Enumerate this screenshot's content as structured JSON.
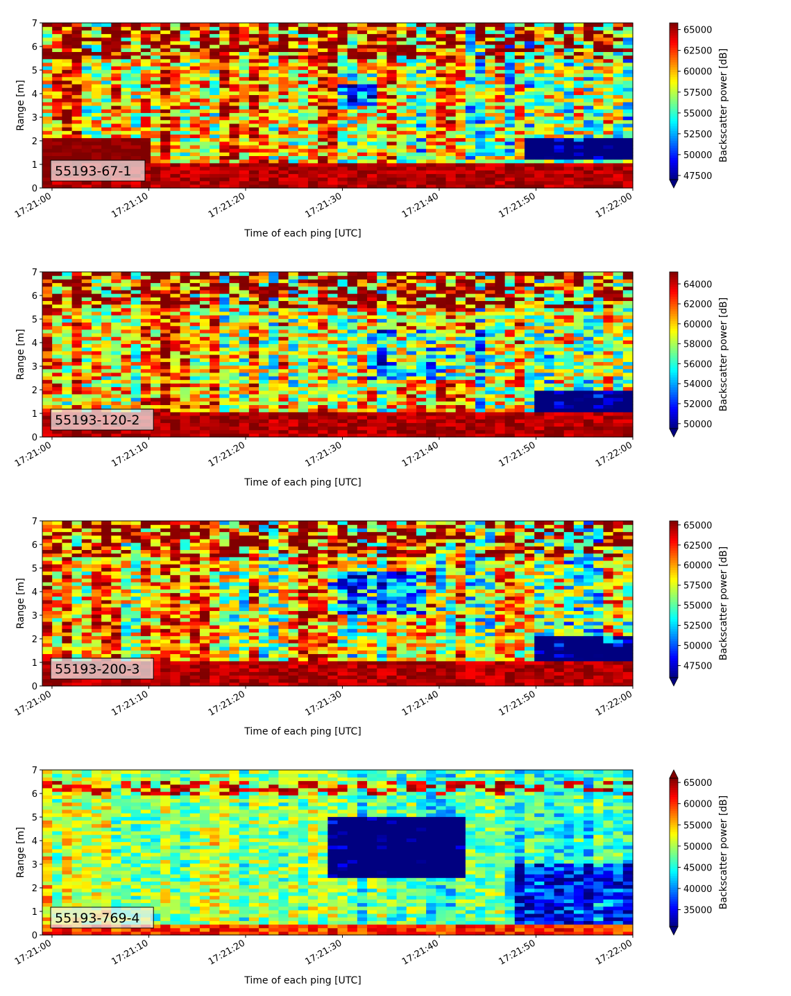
{
  "chart_data": [
    {
      "type": "heatmap",
      "label": "55193-67-1",
      "xlabel": "Time of each ping [UTC]",
      "ylabel": "Range [m]",
      "xticks": [
        "17:21:00",
        "17:21:10",
        "17:21:20",
        "17:21:30",
        "17:21:40",
        "17:21:50",
        "17:22:00"
      ],
      "yticks": [
        0,
        1,
        2,
        3,
        4,
        5,
        6,
        7
      ],
      "x_range": [
        "17:20:59",
        "17:22:00"
      ],
      "ylim": [
        0,
        7
      ],
      "colorbar": {
        "label": "Backscatter power [dB]",
        "range": [
          47000,
          65800
        ],
        "ticks": [
          47500,
          50000,
          52500,
          55000,
          57500,
          60000,
          62500,
          65000
        ],
        "extend": "min"
      },
      "features": {
        "lowband": "high",
        "blue_patch": {
          "x_start": 0.81,
          "x_end": 1.0,
          "y_lo": 1.2,
          "y_hi": 2.2,
          "strength": 0.9
        },
        "mid_blue": {
          "x_start": 0.5,
          "x_end": 0.56,
          "y_lo": 3.5,
          "y_hi": 4.4,
          "strength": 0.6
        }
      }
    },
    {
      "type": "heatmap",
      "label": "55193-120-2",
      "xlabel": "Time of each ping [UTC]",
      "ylabel": "Range [m]",
      "xticks": [
        "17:21:00",
        "17:21:10",
        "17:21:20",
        "17:21:30",
        "17:21:40",
        "17:21:50",
        "17:22:00"
      ],
      "yticks": [
        0,
        1,
        2,
        3,
        4,
        5,
        6,
        7
      ],
      "x_range": [
        "17:20:59",
        "17:22:00"
      ],
      "ylim": [
        0,
        7
      ],
      "colorbar": {
        "label": "Backscatter power [dB]",
        "range": [
          49500,
          65200
        ],
        "ticks": [
          50000,
          52000,
          54000,
          56000,
          58000,
          60000,
          62000,
          64000
        ],
        "extend": "min"
      },
      "features": {
        "lowband": "high",
        "blue_patch": {
          "x_start": 0.83,
          "x_end": 1.0,
          "y_lo": 0.6,
          "y_hi": 2.0,
          "strength": 0.85
        },
        "mid_blue": {
          "x_start": 0.55,
          "x_end": 0.75,
          "y_lo": 2.5,
          "y_hi": 4.5,
          "strength": 0.35
        }
      }
    },
    {
      "type": "heatmap",
      "label": "55193-200-3",
      "xlabel": "Time of each ping [UTC]",
      "ylabel": "Range [m]",
      "xticks": [
        "17:21:00",
        "17:21:10",
        "17:21:20",
        "17:21:30",
        "17:21:40",
        "17:21:50",
        "17:22:00"
      ],
      "yticks": [
        0,
        1,
        2,
        3,
        4,
        5,
        6,
        7
      ],
      "x_range": [
        "17:20:59",
        "17:22:00"
      ],
      "ylim": [
        0,
        7
      ],
      "colorbar": {
        "label": "Backscatter power [dB]",
        "range": [
          46000,
          65500
        ],
        "ticks": [
          47500,
          50000,
          52500,
          55000,
          57500,
          60000,
          62500,
          65000
        ],
        "extend": "min"
      },
      "features": {
        "lowband": "high",
        "blue_patch": {
          "x_start": 0.83,
          "x_end": 1.0,
          "y_lo": 0.5,
          "y_hi": 2.2,
          "strength": 0.85
        },
        "mid_blue": {
          "x_start": 0.48,
          "x_end": 0.65,
          "y_lo": 3.0,
          "y_hi": 4.8,
          "strength": 0.5
        }
      }
    },
    {
      "type": "heatmap",
      "label": "55193-769-4",
      "xlabel": "Time of each ping [UTC]",
      "ylabel": "Range [m]",
      "xticks": [
        "17:21:00",
        "17:21:10",
        "17:21:20",
        "17:21:30",
        "17:21:40",
        "17:21:50",
        "17:22:00"
      ],
      "yticks": [
        0,
        1,
        2,
        3,
        4,
        5,
        6,
        7
      ],
      "x_range": [
        "17:20:59",
        "17:22:00"
      ],
      "ylim": [
        0,
        7
      ],
      "colorbar": {
        "label": "Backscatter power [dB]",
        "range": [
          31000,
          66000
        ],
        "ticks": [
          35000,
          40000,
          45000,
          50000,
          55000,
          60000,
          65000
        ],
        "extend": "both"
      },
      "features": {
        "lowband": "thin",
        "blue_patch": {
          "x_start": 0.48,
          "x_end": 0.72,
          "y_lo": 2.5,
          "y_hi": 5.0,
          "strength": 0.8
        },
        "mid_blue": {
          "x_start": 0.8,
          "x_end": 1.0,
          "y_lo": 0.5,
          "y_hi": 3.0,
          "strength": 0.4
        }
      }
    }
  ]
}
